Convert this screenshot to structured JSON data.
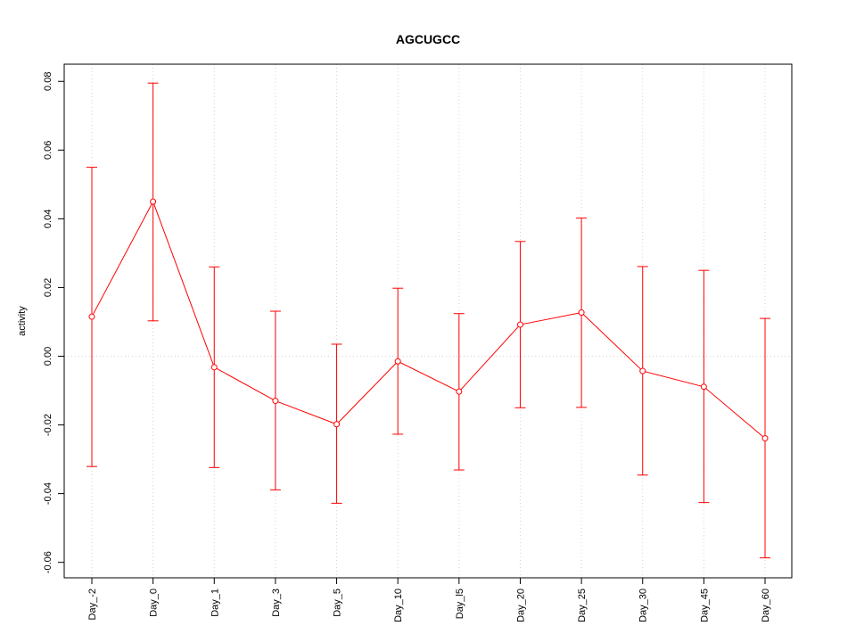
{
  "chart_data": {
    "type": "line",
    "title": "AGCUGCC",
    "xlabel": "",
    "ylabel": "activity",
    "categories": [
      "Day_-2",
      "Day_0",
      "Day_1",
      "Day_3",
      "Day_5",
      "Day_10",
      "Day_l5",
      "Day_20",
      "Day_25",
      "Day_30",
      "Day_45",
      "Day_60"
    ],
    "series": [
      {
        "values": [
          0.0115,
          0.045,
          -0.0032,
          -0.013,
          -0.0198,
          -0.0015,
          -0.0103,
          0.0092,
          0.0127,
          -0.0043,
          -0.0089,
          -0.0239
        ],
        "error_upper": [
          0.055,
          0.0795,
          0.026,
          0.0131,
          0.0035,
          0.0198,
          0.0124,
          0.0334,
          0.0402,
          0.0261,
          0.025,
          0.011
        ],
        "error_lower": [
          -0.0321,
          0.0103,
          -0.0324,
          -0.0389,
          -0.0428,
          -0.0227,
          -0.0331,
          -0.015,
          -0.0149,
          -0.0346,
          -0.0426,
          -0.0587
        ],
        "color": "#ff0000"
      }
    ],
    "ylim": [
      -0.0645,
      0.085
    ],
    "yticks": [
      -0.06,
      -0.04,
      -0.02,
      0.0,
      0.02,
      0.04,
      0.06,
      0.08
    ],
    "ytick_labels": [
      "-0.06",
      "-0.04",
      "-0.02",
      "0.00",
      "0.02",
      "0.04",
      "0.06",
      "0.08"
    ],
    "grid": true,
    "grid_color": "#d3d3d3",
    "hline": 0
  }
}
